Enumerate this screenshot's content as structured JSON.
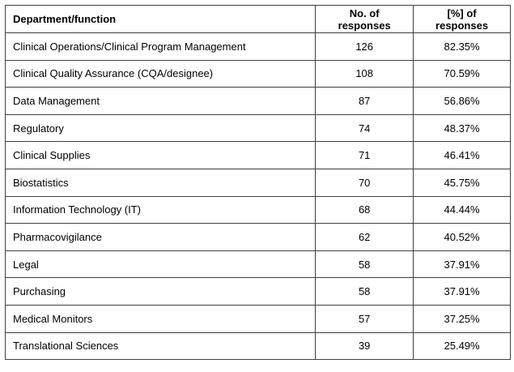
{
  "table": {
    "header": [
      "Department/function",
      "No. of responses",
      "[%] of responses"
    ],
    "rows": [
      [
        "Clinical Operations/Clinical Program Management",
        "126",
        "82.35%"
      ],
      [
        "Clinical Quality Assurance (CQA/designee)",
        "108",
        "70.59%"
      ],
      [
        "Data Management",
        "87",
        "56.86%"
      ],
      [
        "Regulatory",
        "74",
        "48.37%"
      ],
      [
        "Clinical Supplies",
        "71",
        "46.41%"
      ],
      [
        "Biostatistics",
        "70",
        "45.75%"
      ],
      [
        "Information Technology (IT)",
        "68",
        "44.44%"
      ],
      [
        "Pharmacovigilance",
        "62",
        "40.52%"
      ],
      [
        "Legal",
        "58",
        "37.91%"
      ],
      [
        "Purchasing",
        "58",
        "37.91%"
      ],
      [
        "Medical Monitors",
        "57",
        "37.25%"
      ],
      [
        "Translational Sciences",
        "39",
        "25.49%"
      ]
    ]
  }
}
